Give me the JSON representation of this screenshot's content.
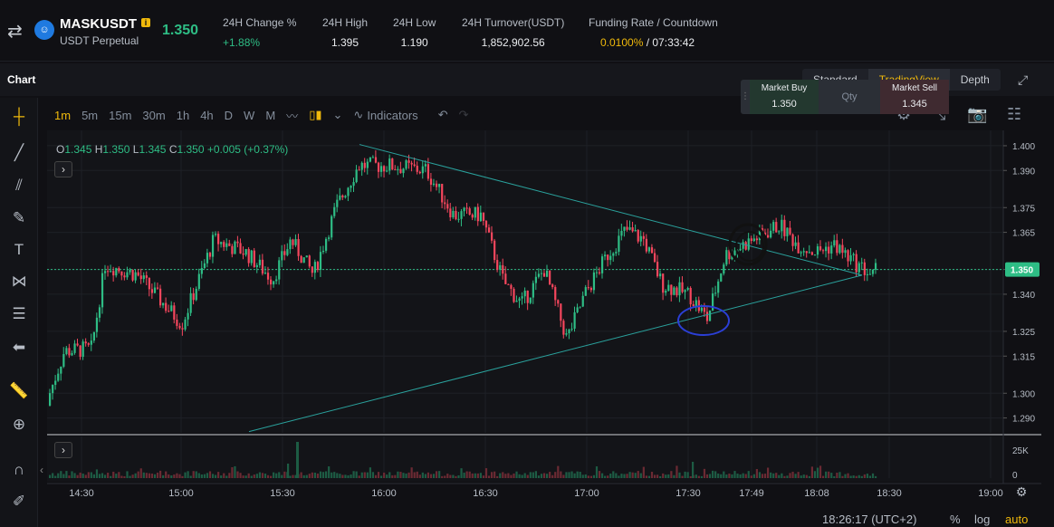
{
  "header": {
    "symbol": "MASKUSDT",
    "info_badge": "i",
    "subtitle": "USDT Perpetual",
    "last_price": "1.350",
    "coin_icon": "mask-coin-icon",
    "stats": [
      {
        "label": "24H Change %",
        "value": "+1.88%",
        "color": "green"
      },
      {
        "label": "24H High",
        "value": "1.395",
        "color": ""
      },
      {
        "label": "24H Low",
        "value": "1.190",
        "color": ""
      },
      {
        "label": "24H Turnover(USDT)",
        "value": "1,852,902.56",
        "color": ""
      },
      {
        "label": "Funding Rate / Countdown",
        "value_a": "0.0100%",
        "value_b": "/ 07:33:42",
        "color": "orange"
      }
    ]
  },
  "panel": {
    "title": "Chart",
    "views": [
      "Standard",
      "TradingView",
      "Depth"
    ],
    "active_view": "TradingView"
  },
  "market": {
    "buy_label": "Market Buy",
    "buy_price": "1.350",
    "qty_label": "Qty",
    "sell_label": "Market Sell",
    "sell_price": "1.345"
  },
  "toolbar": {
    "intervals": [
      "1m",
      "5m",
      "15m",
      "30m",
      "1h",
      "4h",
      "D",
      "W",
      "M"
    ],
    "active_interval": "1m",
    "indicators_label": "Indicators"
  },
  "ohlc": {
    "o": "1.345",
    "h": "1.350",
    "l": "1.345",
    "c": "1.350",
    "chg": "+0.005 (+0.37%)"
  },
  "colors": {
    "up": "#2ebd85",
    "down": "#f6465d",
    "accent": "#f0b90b",
    "bg": "#101014",
    "grid": "#1e2026",
    "trend": "#2aa19c"
  },
  "chart_data": {
    "type": "candlestick",
    "title": "",
    "price_ticks": [
      "1.400",
      "1.390",
      "1.375",
      "1.365",
      "1.350",
      "1.340",
      "1.325",
      "1.315",
      "1.300",
      "1.290"
    ],
    "current_price": "1.350",
    "volume_ticks": [
      "25K",
      "0"
    ],
    "time_ticks": [
      "14:30",
      "15:00",
      "15:30",
      "16:00",
      "16:30",
      "17:00",
      "17:30",
      "17:49",
      "18:08",
      "18:30",
      "19:00"
    ],
    "ylim": [
      1.284,
      1.404
    ],
    "grid": true
  },
  "footer": {
    "clock": "18:26:17 (UTC+2)",
    "pct": "%",
    "log": "log",
    "auto": "auto"
  }
}
